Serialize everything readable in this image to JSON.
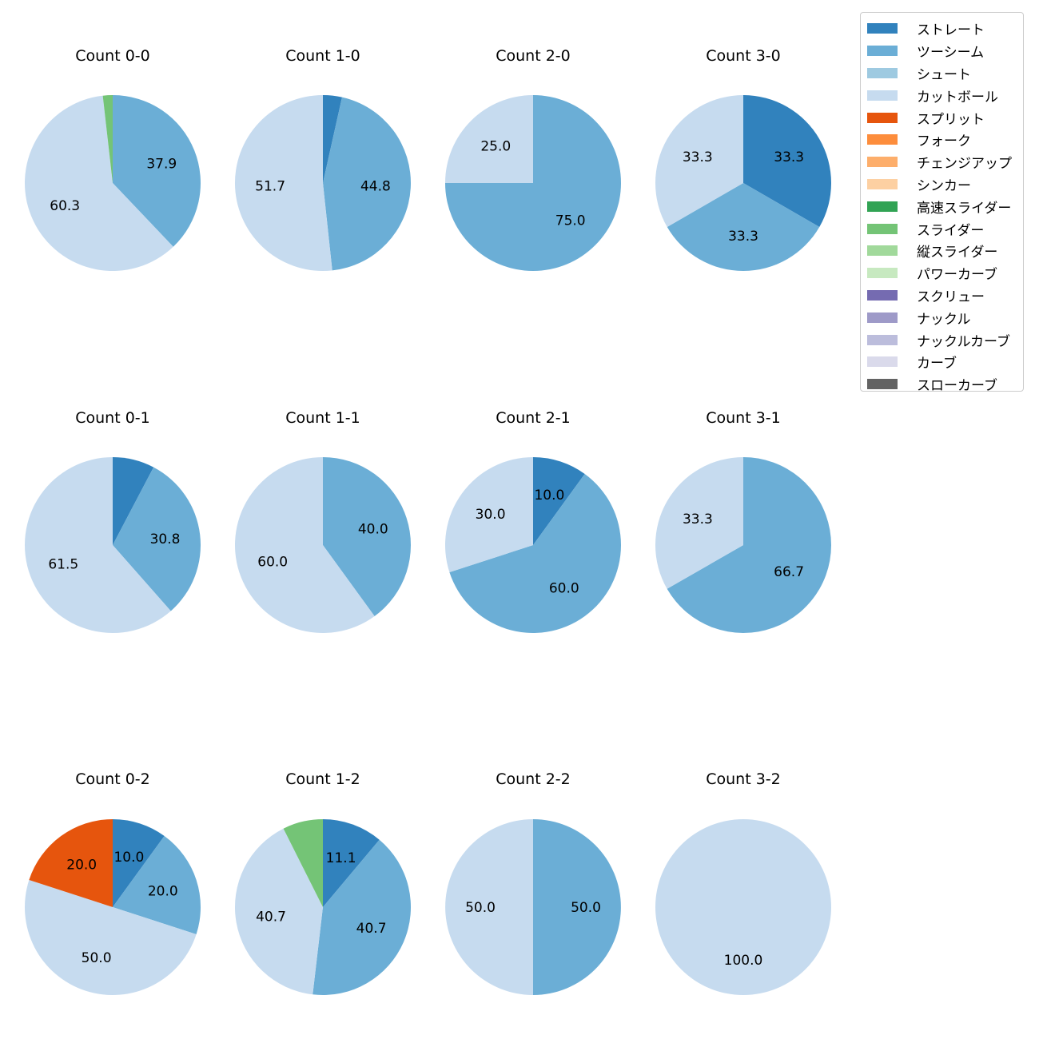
{
  "chart_data": {
    "type": "pie",
    "series_names": [
      "ストレート",
      "ツーシーム",
      "シュート",
      "カットボール",
      "スプリット",
      "フォーク",
      "チェンジアップ",
      "シンカー",
      "高速スライダー",
      "スライダー",
      "縦スライダー",
      "パワーカーブ",
      "スクリュー",
      "ナックル",
      "ナックルカーブ",
      "カーブ",
      "スローカーブ"
    ],
    "series_colors": [
      "#3182bd",
      "#6baed6",
      "#9ecae1",
      "#c6dbef",
      "#e6550d",
      "#fd8d3c",
      "#fdae6b",
      "#fdd0a2",
      "#31a354",
      "#74c476",
      "#a1d99b",
      "#c7e9c0",
      "#756bb1",
      "#9e9ac8",
      "#bcbddc",
      "#dadaeb",
      "#636363"
    ],
    "start_direction": "top, clockwise",
    "charts": [
      {
        "title": "Count 0-0",
        "slices": [
          {
            "name": "ツーシーム",
            "value": 37.9,
            "label": "37.9"
          },
          {
            "name": "カットボール",
            "value": 60.3,
            "label": "60.3"
          },
          {
            "name": "スライダー",
            "value": 1.8,
            "label": ""
          }
        ]
      },
      {
        "title": "Count 1-0",
        "slices": [
          {
            "name": "ストレート",
            "value": 3.5,
            "label": ""
          },
          {
            "name": "ツーシーム",
            "value": 44.8,
            "label": "44.8"
          },
          {
            "name": "カットボール",
            "value": 51.7,
            "label": "51.7"
          }
        ]
      },
      {
        "title": "Count 2-0",
        "slices": [
          {
            "name": "ツーシーム",
            "value": 75.0,
            "label": "75.0"
          },
          {
            "name": "カットボール",
            "value": 25.0,
            "label": "25.0"
          }
        ]
      },
      {
        "title": "Count 3-0",
        "slices": [
          {
            "name": "ストレート",
            "value": 33.3,
            "label": "33.3"
          },
          {
            "name": "ツーシーム",
            "value": 33.3,
            "label": "33.3"
          },
          {
            "name": "カットボール",
            "value": 33.3,
            "label": "33.3"
          }
        ]
      },
      {
        "title": "Count 0-1",
        "slices": [
          {
            "name": "ストレート",
            "value": 7.7,
            "label": ""
          },
          {
            "name": "ツーシーム",
            "value": 30.8,
            "label": "30.8"
          },
          {
            "name": "カットボール",
            "value": 61.5,
            "label": "61.5"
          }
        ]
      },
      {
        "title": "Count 1-1",
        "slices": [
          {
            "name": "ツーシーム",
            "value": 40.0,
            "label": "40.0"
          },
          {
            "name": "カットボール",
            "value": 60.0,
            "label": "60.0"
          }
        ]
      },
      {
        "title": "Count 2-1",
        "slices": [
          {
            "name": "ストレート",
            "value": 10.0,
            "label": "10.0"
          },
          {
            "name": "ツーシーム",
            "value": 60.0,
            "label": "60.0"
          },
          {
            "name": "カットボール",
            "value": 30.0,
            "label": "30.0"
          }
        ]
      },
      {
        "title": "Count 3-1",
        "slices": [
          {
            "name": "ツーシーム",
            "value": 66.7,
            "label": "66.7"
          },
          {
            "name": "カットボール",
            "value": 33.3,
            "label": "33.3"
          }
        ]
      },
      {
        "title": "Count 0-2",
        "slices": [
          {
            "name": "ストレート",
            "value": 10.0,
            "label": "10.0"
          },
          {
            "name": "ツーシーム",
            "value": 20.0,
            "label": "20.0"
          },
          {
            "name": "カットボール",
            "value": 50.0,
            "label": "50.0"
          },
          {
            "name": "スプリット",
            "value": 20.0,
            "label": "20.0"
          }
        ]
      },
      {
        "title": "Count 1-2",
        "slices": [
          {
            "name": "ストレート",
            "value": 11.1,
            "label": "11.1"
          },
          {
            "name": "ツーシーム",
            "value": 40.7,
            "label": "40.7"
          },
          {
            "name": "カットボール",
            "value": 40.7,
            "label": "40.7"
          },
          {
            "name": "スライダー",
            "value": 7.4,
            "label": ""
          }
        ]
      },
      {
        "title": "Count 2-2",
        "slices": [
          {
            "name": "ツーシーム",
            "value": 50.0,
            "label": "50.0"
          },
          {
            "name": "カットボール",
            "value": 50.0,
            "label": "50.0"
          }
        ]
      },
      {
        "title": "Count 3-2",
        "slices": [
          {
            "name": "カットボール",
            "value": 100.0,
            "label": "100.0"
          }
        ]
      }
    ]
  }
}
